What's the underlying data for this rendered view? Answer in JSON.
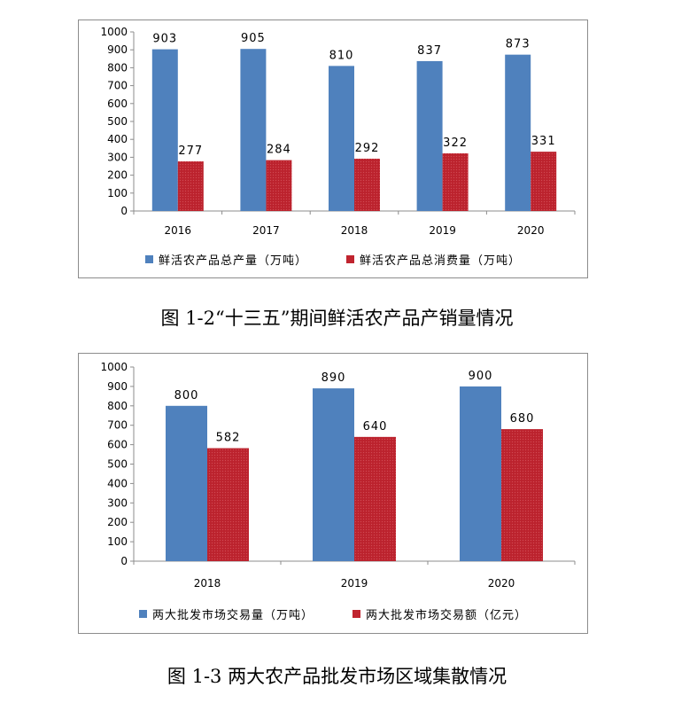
{
  "chart_data": [
    {
      "type": "bar",
      "categories": [
        "2016",
        "2017",
        "2018",
        "2019",
        "2020"
      ],
      "series": [
        {
          "name": "鲜活农产品总产量（万吨）",
          "values": [
            903,
            905,
            810,
            837,
            873
          ],
          "color": "#4f81bd"
        },
        {
          "name": "鲜活农产品总消费量（万吨）",
          "values": [
            277,
            284,
            292,
            322,
            331
          ],
          "color": "#c0242f"
        }
      ],
      "yticks": [
        "0",
        "100",
        "200",
        "300",
        "400",
        "500",
        "600",
        "700",
        "800",
        "900",
        "1000"
      ],
      "ylim": [
        0,
        1000
      ],
      "grid": false,
      "legend_position": "bottom"
    },
    {
      "type": "bar",
      "categories": [
        "2018",
        "2019",
        "2020"
      ],
      "series": [
        {
          "name": "两大批发市场交易量（万吨）",
          "values": [
            800,
            890,
            900
          ],
          "color": "#4f81bd"
        },
        {
          "name": "两大批发市场交易额（亿元）",
          "values": [
            582,
            640,
            680
          ],
          "color": "#c0242f"
        }
      ],
      "yticks": [
        "0",
        "100",
        "200",
        "300",
        "400",
        "500",
        "600",
        "700",
        "800",
        "900",
        "1000"
      ],
      "ylim": [
        0,
        1000
      ],
      "grid": false,
      "legend_position": "bottom"
    }
  ],
  "captions": [
    "图 1-2“十三五”期间鲜活农产品产销量情况",
    "图 1-3 两大农产品批发市场区域集散情况"
  ]
}
